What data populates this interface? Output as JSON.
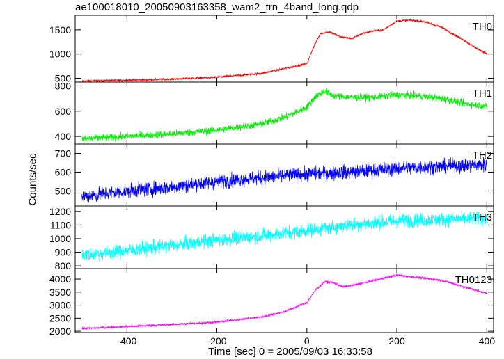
{
  "title": "ae100018010_20050903163358_wam2_trn_4band_long.qdp",
  "xlabel": "Time [sec] 0 = 2005/09/03 16:33:58",
  "ylabel": "Counts/sec",
  "chart_data": {
    "type": "line",
    "title": "ae100018010_20050903163358_wam2_trn_4band_long.qdp",
    "xlabel": "Time [sec] 0 = 2005/09/03 16:33:58",
    "ylabel": "Counts/sec",
    "xlim": [
      -515,
      415
    ],
    "xticks": [
      -400,
      -200,
      0,
      200,
      400
    ],
    "grid": false,
    "panels": [
      {
        "name": "TH0",
        "color": "#ff0000",
        "ylim": [
          420,
          1800
        ],
        "yticks": [
          500,
          1000,
          1500
        ],
        "noise": 22,
        "x": [
          -500,
          -400,
          -300,
          -200,
          -100,
          -50,
          0,
          15,
          30,
          50,
          75,
          100,
          125,
          150,
          170,
          200,
          230,
          260,
          300,
          350,
          380,
          400
        ],
        "y": [
          440,
          460,
          480,
          520,
          600,
          700,
          800,
          1150,
          1420,
          1460,
          1350,
          1320,
          1430,
          1480,
          1500,
          1680,
          1700,
          1670,
          1550,
          1280,
          1100,
          1010
        ]
      },
      {
        "name": "TH1",
        "color": "#00ee00",
        "ylim": [
          340,
          830
        ],
        "yticks": [
          400,
          600,
          800
        ],
        "noise": 28,
        "x": [
          -500,
          -400,
          -300,
          -200,
          -100,
          -50,
          0,
          20,
          40,
          60,
          100,
          150,
          200,
          250,
          300,
          350,
          400
        ],
        "y": [
          380,
          400,
          420,
          450,
          500,
          550,
          630,
          720,
          760,
          720,
          710,
          710,
          730,
          720,
          700,
          660,
          640
        ]
      },
      {
        "name": "TH2",
        "color": "#0000ff",
        "ylim": [
          420,
          750
        ],
        "yticks": [
          500,
          600,
          700
        ],
        "noise": 38,
        "x": [
          -500,
          -400,
          -300,
          -200,
          -100,
          0,
          100,
          200,
          300,
          400
        ],
        "y": [
          470,
          500,
          520,
          550,
          570,
          590,
          600,
          620,
          630,
          640
        ]
      },
      {
        "name": "TH3",
        "color": "#00ffff",
        "ylim": [
          780,
          1240
        ],
        "yticks": [
          800,
          900,
          1000,
          1100,
          1200
        ],
        "noise": 50,
        "x": [
          -500,
          -400,
          -300,
          -200,
          -100,
          0,
          100,
          200,
          300,
          400
        ],
        "y": [
          880,
          910,
          950,
          990,
          1020,
          1060,
          1100,
          1130,
          1140,
          1150
        ]
      },
      {
        "name": "TH0123",
        "color": "#ff00ff",
        "ylim": [
          1950,
          4400
        ],
        "yticks": [
          2000,
          2500,
          3000,
          3500,
          4000
        ],
        "noise": 45,
        "x": [
          -500,
          -400,
          -300,
          -200,
          -100,
          -50,
          0,
          20,
          40,
          60,
          80,
          100,
          150,
          200,
          250,
          300,
          350,
          400
        ],
        "y": [
          2100,
          2180,
          2260,
          2350,
          2550,
          2750,
          3100,
          3600,
          3900,
          3850,
          3700,
          3750,
          3950,
          4150,
          4050,
          3950,
          3700,
          3450
        ]
      }
    ]
  }
}
